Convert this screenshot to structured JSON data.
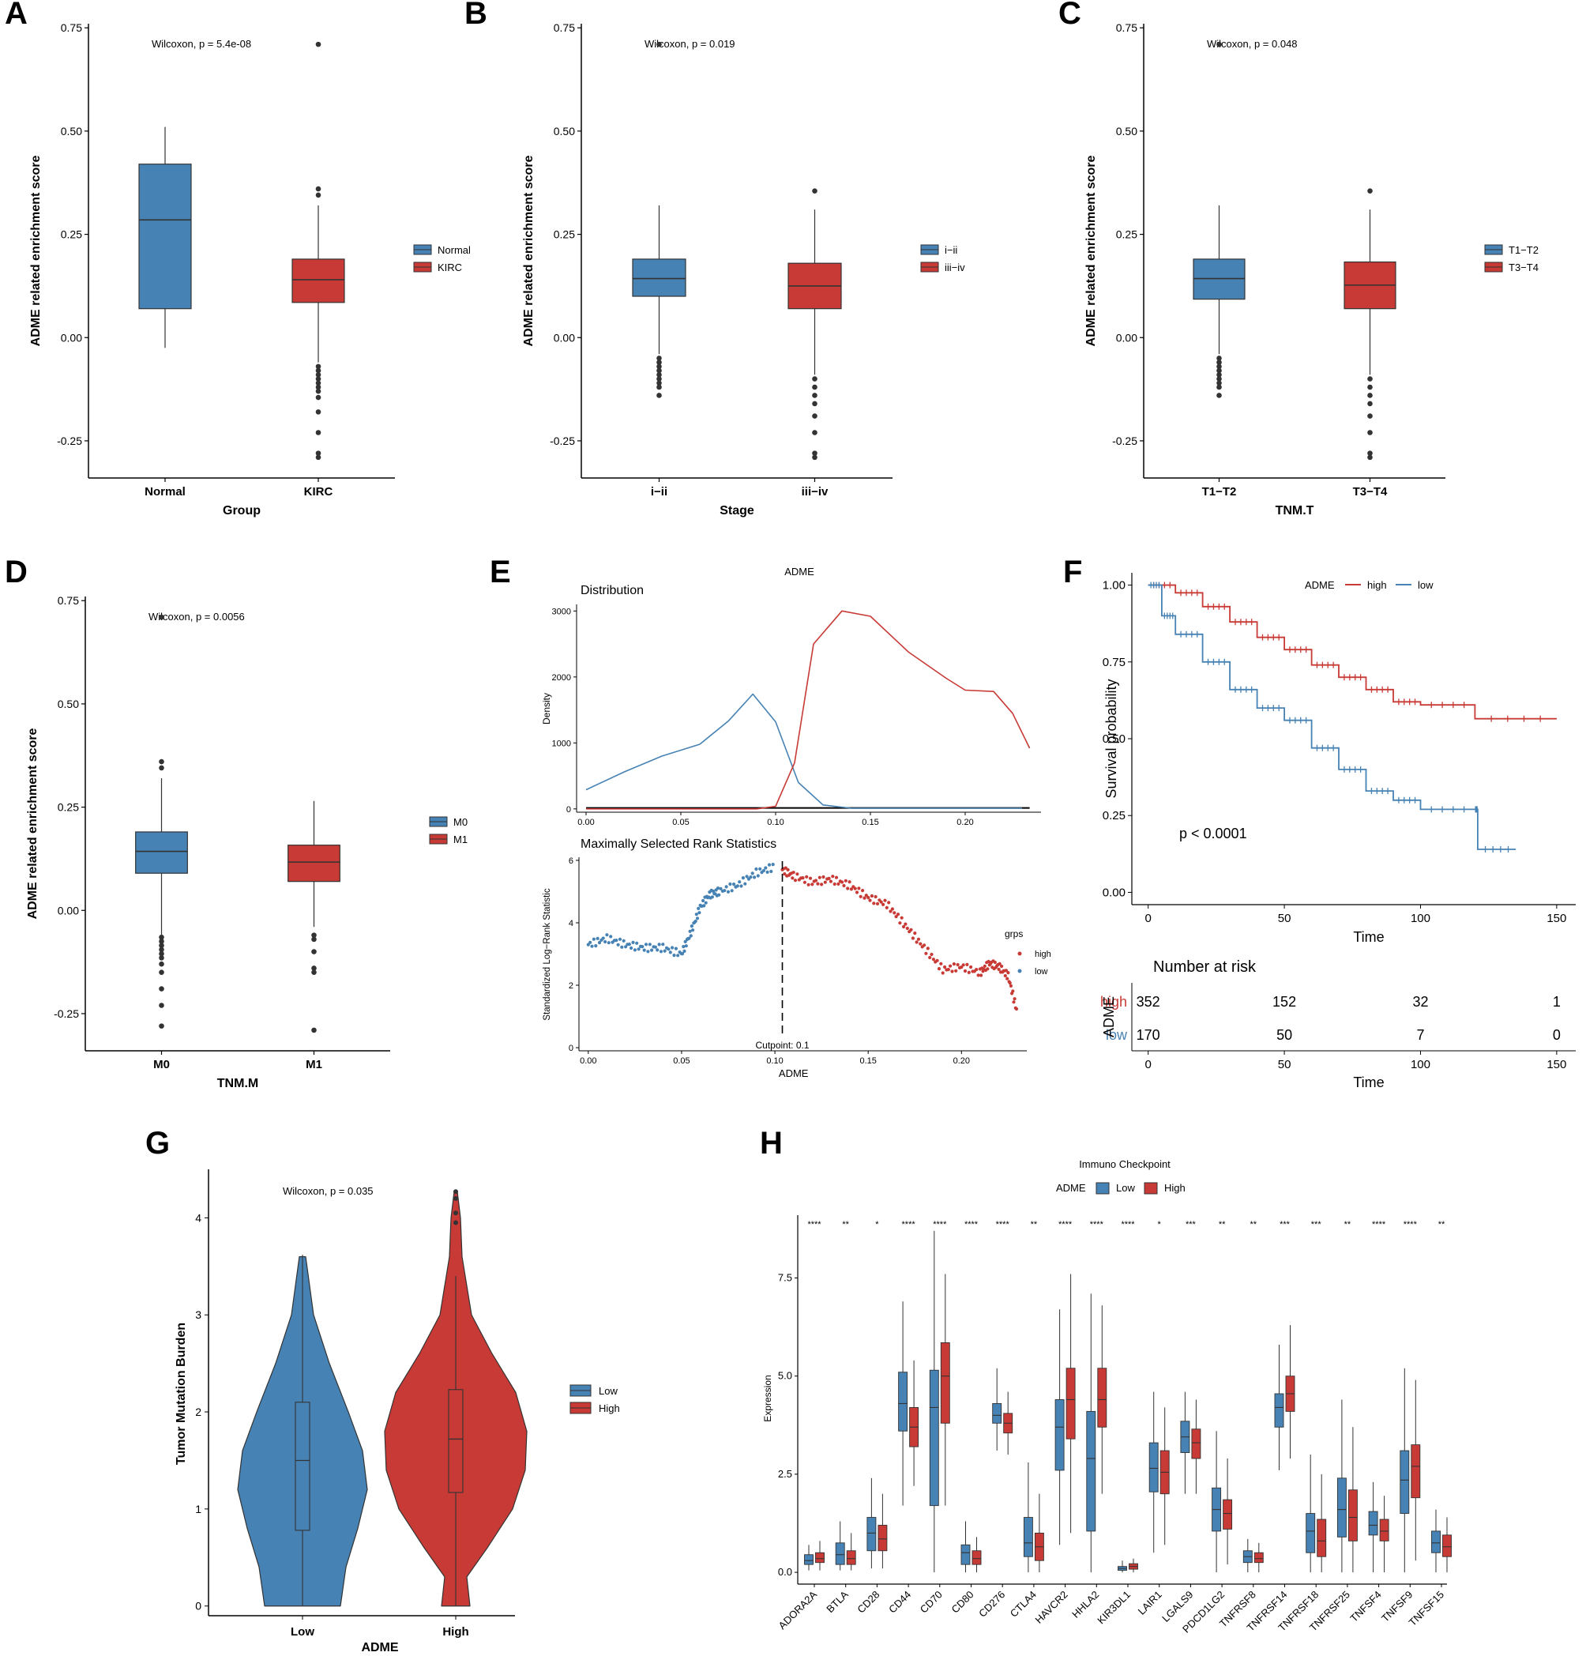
{
  "colors": {
    "blue": "#4682b4",
    "red": "#c83a35",
    "axis": "#000000",
    "dark": "#333333"
  },
  "chart_data": [
    {
      "panel": "A",
      "type": "box",
      "xlabel": "Group",
      "ylabel": "ADME related enrichment score",
      "annotation": "Wilcoxon, p = 5.4e-08",
      "ylim": [
        -0.34,
        0.76
      ],
      "yticks": [
        "-0.25",
        "0.00",
        "0.25",
        "0.50",
        "0.75"
      ],
      "categories": [
        "Normal",
        "KIRC"
      ],
      "legend": [
        "Normal",
        "KIRC"
      ],
      "boxes": [
        {
          "q1": 0.07,
          "median": 0.285,
          "q3": 0.42,
          "wlo": -0.025,
          "whi": 0.51,
          "outliers": []
        },
        {
          "q1": 0.085,
          "median": 0.14,
          "q3": 0.19,
          "wlo": -0.06,
          "whi": 0.32,
          "outliers": [
            0.36,
            0.345,
            0.71,
            -0.07,
            -0.08,
            -0.09,
            -0.1,
            -0.11,
            -0.12,
            -0.13,
            -0.145,
            -0.18,
            -0.23,
            -0.28,
            -0.29
          ]
        }
      ]
    },
    {
      "panel": "B",
      "type": "box",
      "xlabel": "Stage",
      "ylabel": "ADME related enrichment score",
      "annotation": "Wilcoxon, p = 0.019",
      "ylim": [
        -0.34,
        0.76
      ],
      "yticks": [
        "-0.25",
        "0.00",
        "0.25",
        "0.50",
        "0.75"
      ],
      "categories": [
        "i−ii",
        "iii−iv"
      ],
      "legend": [
        "i−ii",
        "iii−iv"
      ],
      "boxes": [
        {
          "q1": 0.1,
          "median": 0.143,
          "q3": 0.19,
          "wlo": -0.04,
          "whi": 0.32,
          "outliers": [
            0.71,
            -0.05,
            -0.06,
            -0.07,
            -0.08,
            -0.09,
            -0.1,
            -0.11,
            -0.12,
            -0.14
          ]
        },
        {
          "q1": 0.07,
          "median": 0.125,
          "q3": 0.18,
          "wlo": -0.09,
          "whi": 0.31,
          "outliers": [
            0.355,
            -0.1,
            -0.12,
            -0.14,
            -0.16,
            -0.19,
            -0.23,
            -0.28,
            -0.29
          ]
        }
      ]
    },
    {
      "panel": "C",
      "type": "box",
      "xlabel": "TNM.T",
      "ylabel": "ADME related enrichment score",
      "annotation": "Wilcoxon, p = 0.048",
      "ylim": [
        -0.34,
        0.76
      ],
      "yticks": [
        "-0.25",
        "0.00",
        "0.25",
        "0.50",
        "0.75"
      ],
      "categories": [
        "T1−T2",
        "T3−T4"
      ],
      "legend": [
        "T1−T2",
        "T3−T4"
      ],
      "boxes": [
        {
          "q1": 0.093,
          "median": 0.143,
          "q3": 0.19,
          "wlo": -0.04,
          "whi": 0.32,
          "outliers": [
            0.71,
            -0.05,
            -0.06,
            -0.07,
            -0.08,
            -0.09,
            -0.1,
            -0.11,
            -0.12,
            -0.14
          ]
        },
        {
          "q1": 0.07,
          "median": 0.127,
          "q3": 0.183,
          "wlo": -0.09,
          "whi": 0.31,
          "outliers": [
            0.355,
            -0.1,
            -0.12,
            -0.14,
            -0.16,
            -0.19,
            -0.23,
            -0.28,
            -0.29
          ]
        }
      ]
    },
    {
      "panel": "D",
      "type": "box",
      "xlabel": "TNM.M",
      "ylabel": "ADME related enrichment score",
      "annotation": "Wilcoxon, p = 0.0056",
      "ylim": [
        -0.34,
        0.76
      ],
      "yticks": [
        "-0.25",
        "0.00",
        "0.25",
        "0.50",
        "0.75"
      ],
      "categories": [
        "M0",
        "M1"
      ],
      "legend": [
        "M0",
        "M1"
      ],
      "boxes": [
        {
          "q1": 0.09,
          "median": 0.143,
          "q3": 0.19,
          "wlo": -0.06,
          "whi": 0.32,
          "outliers": [
            0.36,
            0.345,
            0.71,
            -0.065,
            -0.075,
            -0.085,
            -0.095,
            -0.105,
            -0.115,
            -0.13,
            -0.15,
            -0.19,
            -0.23,
            -0.28
          ]
        },
        {
          "q1": 0.07,
          "median": 0.117,
          "q3": 0.158,
          "wlo": -0.04,
          "whi": 0.265,
          "outliers": [
            -0.06,
            -0.07,
            -0.1,
            -0.14,
            -0.15,
            -0.29
          ]
        }
      ]
    },
    {
      "panel": "E",
      "type": "line",
      "title": "ADME",
      "top": {
        "subtitle": "Distribution",
        "ylabel": "Density",
        "xticks": [
          "0.00",
          "0.05",
          "0.10",
          "0.15",
          "0.20"
        ],
        "yticks": [
          "0",
          "1000",
          "2000",
          "3000"
        ],
        "xlim": [
          -0.005,
          0.24
        ],
        "ylim": [
          -50,
          3100
        ],
        "low_curve": {
          "x": [
            0.0,
            0.02,
            0.04,
            0.06,
            0.075,
            0.088,
            0.1,
            0.112,
            0.125,
            0.14,
            0.23
          ],
          "y": [
            290,
            560,
            800,
            980,
            1330,
            1740,
            1320,
            400,
            60,
            10,
            10
          ]
        },
        "high_curve": {
          "x": [
            0.0,
            0.09,
            0.1,
            0.11,
            0.12,
            0.135,
            0.15,
            0.17,
            0.19,
            0.2,
            0.215,
            0.225,
            0.234
          ],
          "y": [
            0,
            0,
            40,
            700,
            2500,
            3000,
            2920,
            2380,
            1980,
            1800,
            1780,
            1450,
            920
          ]
        }
      },
      "bottom": {
        "subtitle": "Maximally Selected Rank Statistics",
        "ylabel": "Standardized Log−Rank Statistic",
        "xlabel": "ADME",
        "xticks": [
          "0.00",
          "0.05",
          "0.10",
          "0.15",
          "0.20"
        ],
        "yticks": [
          "0",
          "2",
          "4",
          "6"
        ],
        "xlim": [
          -0.005,
          0.235
        ],
        "ylim": [
          -0.1,
          6.1
        ],
        "cutpoint": 0.104,
        "cutpoint_label": "Cutpoint: 0.1",
        "legend_title": "grps",
        "legend": [
          "high",
          "low"
        ],
        "low_points": {
          "x": [
            0.0,
            0.01,
            0.02,
            0.03,
            0.04,
            0.05,
            0.055,
            0.06,
            0.065,
            0.07,
            0.08,
            0.09,
            0.1
          ],
          "y": [
            3.3,
            3.5,
            3.3,
            3.2,
            3.2,
            3.0,
            3.7,
            4.5,
            4.9,
            5.0,
            5.2,
            5.6,
            5.8
          ]
        },
        "high_points": {
          "x": [
            0.104,
            0.11,
            0.12,
            0.13,
            0.14,
            0.15,
            0.16,
            0.17,
            0.18,
            0.19,
            0.2,
            0.21,
            0.215,
            0.22,
            0.225,
            0.23
          ],
          "y": [
            5.7,
            5.5,
            5.3,
            5.4,
            5.2,
            4.8,
            4.6,
            3.9,
            3.2,
            2.5,
            2.6,
            2.4,
            2.7,
            2.6,
            2.3,
            1.1
          ]
        }
      }
    },
    {
      "panel": "F",
      "type": "line",
      "ylabel": "Survival probability",
      "xlabel": "Time",
      "pvalue": "p < 0.0001",
      "legend_title": "ADME",
      "legend": [
        "high",
        "low"
      ],
      "xticks": [
        "0",
        "50",
        "100",
        "150"
      ],
      "yticks": [
        "0.00",
        "0.25",
        "0.50",
        "0.75",
        "1.00"
      ],
      "xlim": [
        -6,
        157
      ],
      "ylim": [
        -0.04,
        1.04
      ],
      "high": {
        "t": [
          0,
          10,
          20,
          30,
          40,
          50,
          60,
          70,
          80,
          90,
          100,
          120,
          150
        ],
        "s": [
          1.0,
          0.975,
          0.93,
          0.88,
          0.83,
          0.79,
          0.74,
          0.7,
          0.66,
          0.62,
          0.61,
          0.565,
          0.565
        ]
      },
      "low": {
        "t": [
          0,
          5,
          10,
          20,
          30,
          40,
          50,
          60,
          70,
          80,
          90,
          100,
          120,
          121,
          135
        ],
        "s": [
          1.0,
          0.9,
          0.84,
          0.75,
          0.66,
          0.6,
          0.56,
          0.47,
          0.4,
          0.33,
          0.3,
          0.27,
          0.27,
          0.14,
          0.14
        ]
      },
      "risk_table": {
        "title": "Number at risk",
        "strata_label": "ADME",
        "times": [
          "0",
          "50",
          "100",
          "150"
        ],
        "rows": [
          {
            "label": "high",
            "values": [
              "352",
              "152",
              "32",
              "1"
            ]
          },
          {
            "label": "low",
            "values": [
              "170",
              "50",
              "7",
              "0"
            ]
          }
        ]
      }
    },
    {
      "panel": "G",
      "type": "violin",
      "xlabel": "ADME",
      "ylabel": "Tumor Mutation Burden",
      "annotation": "Wilcoxon, p = 0.035",
      "categories": [
        "Low",
        "High"
      ],
      "legend": [
        "Low",
        "High"
      ],
      "yticks": [
        "0",
        "1",
        "2",
        "3",
        "4"
      ],
      "ylim": [
        -0.1,
        4.5
      ],
      "violins": [
        {
          "box": {
            "q1": 0.78,
            "median": 1.5,
            "q3": 2.1,
            "wlo": 0.0,
            "whi": 3.62
          },
          "outliers": []
        },
        {
          "box": {
            "q1": 1.17,
            "median": 1.72,
            "q3": 2.23,
            "wlo": 0.0,
            "whi": 3.4
          },
          "outliers": [
            3.95,
            4.05,
            4.2,
            4.27
          ]
        }
      ]
    },
    {
      "panel": "H",
      "type": "box",
      "title": "Immuno Checkpoint",
      "ylabel": "Expression",
      "legend_title": "ADME",
      "legend": [
        "Low",
        "High"
      ],
      "yticks": [
        "0.0",
        "2.5",
        "5.0",
        "7.5"
      ],
      "ylim": [
        -0.3,
        9.1
      ],
      "categories": [
        "ADORA2A",
        "BTLA",
        "CD28",
        "CD44",
        "CD70",
        "CD80",
        "CD276",
        "CTLA4",
        "HAVCR2",
        "HHLA2",
        "KIR3DL1",
        "LAIR1",
        "LGALS9",
        "PDCD1LG2",
        "TNFRSF8",
        "TNFRSF14",
        "TNFRSF18",
        "TNFRSF25",
        "TNFSF4",
        "TNFSF9",
        "TNFSF15"
      ],
      "significance": [
        "****",
        "**",
        "*",
        "****",
        "****",
        "****",
        "****",
        "**",
        "****",
        "****",
        "****",
        "*",
        "***",
        "**",
        "**",
        "***",
        "***",
        "**",
        "****",
        "****",
        "**"
      ],
      "low": [
        [
          0.2,
          0.3,
          0.45,
          0.05,
          0.7
        ],
        [
          0.2,
          0.45,
          0.75,
          0.05,
          1.3
        ],
        [
          0.55,
          1.0,
          1.4,
          0.1,
          2.4
        ],
        [
          3.6,
          4.3,
          5.1,
          1.7,
          6.9
        ],
        [
          1.7,
          4.2,
          5.15,
          0.0,
          8.7
        ],
        [
          0.2,
          0.5,
          0.7,
          0.0,
          1.3
        ],
        [
          3.8,
          4.0,
          4.3,
          3.1,
          5.2
        ],
        [
          0.4,
          0.75,
          1.4,
          0.0,
          2.8
        ],
        [
          2.6,
          3.7,
          4.4,
          0.7,
          6.7
        ],
        [
          1.05,
          2.9,
          4.1,
          0.0,
          7.1
        ],
        [
          0.05,
          0.1,
          0.15,
          0.0,
          0.3
        ],
        [
          2.05,
          2.65,
          3.3,
          0.5,
          4.6
        ],
        [
          3.05,
          3.45,
          3.85,
          2.0,
          4.6
        ],
        [
          1.05,
          1.6,
          2.15,
          0.0,
          3.6
        ],
        [
          0.25,
          0.4,
          0.55,
          0.0,
          0.85
        ],
        [
          3.7,
          4.2,
          4.55,
          2.6,
          5.8
        ],
        [
          0.5,
          1.05,
          1.5,
          0.0,
          3.0
        ],
        [
          0.9,
          1.6,
          2.4,
          0.0,
          4.4
        ],
        [
          0.95,
          1.2,
          1.55,
          0.0,
          2.3
        ],
        [
          1.5,
          2.35,
          3.1,
          0.0,
          5.2
        ],
        [
          0.5,
          0.75,
          1.05,
          0.0,
          1.6
        ]
      ],
      "high": [
        [
          0.25,
          0.35,
          0.5,
          0.05,
          0.8
        ],
        [
          0.2,
          0.35,
          0.55,
          0.05,
          1.0
        ],
        [
          0.55,
          0.85,
          1.2,
          0.1,
          2.0
        ],
        [
          3.2,
          3.7,
          4.2,
          2.2,
          5.4
        ],
        [
          3.8,
          5.0,
          5.85,
          1.7,
          7.6
        ],
        [
          0.2,
          0.35,
          0.55,
          0.0,
          0.9
        ],
        [
          3.55,
          3.8,
          4.05,
          3.0,
          4.6
        ],
        [
          0.3,
          0.65,
          1.0,
          0.0,
          2.0
        ],
        [
          3.4,
          4.4,
          5.2,
          1.0,
          7.6
        ],
        [
          3.7,
          4.4,
          5.2,
          2.0,
          6.8
        ],
        [
          0.08,
          0.15,
          0.22,
          0.0,
          0.35
        ],
        [
          2.0,
          2.55,
          3.1,
          0.7,
          4.2
        ],
        [
          2.9,
          3.3,
          3.65,
          2.0,
          4.4
        ],
        [
          1.1,
          1.5,
          1.85,
          0.2,
          2.9
        ],
        [
          0.25,
          0.35,
          0.5,
          0.0,
          0.75
        ],
        [
          4.1,
          4.55,
          5.0,
          2.9,
          6.3
        ],
        [
          0.4,
          0.8,
          1.35,
          0.0,
          2.5
        ],
        [
          0.8,
          1.4,
          2.1,
          0.0,
          3.7
        ],
        [
          0.8,
          1.05,
          1.35,
          0.0,
          1.95
        ],
        [
          1.9,
          2.7,
          3.25,
          0.3,
          4.9
        ],
        [
          0.4,
          0.65,
          0.95,
          0.0,
          1.4
        ]
      ]
    }
  ]
}
